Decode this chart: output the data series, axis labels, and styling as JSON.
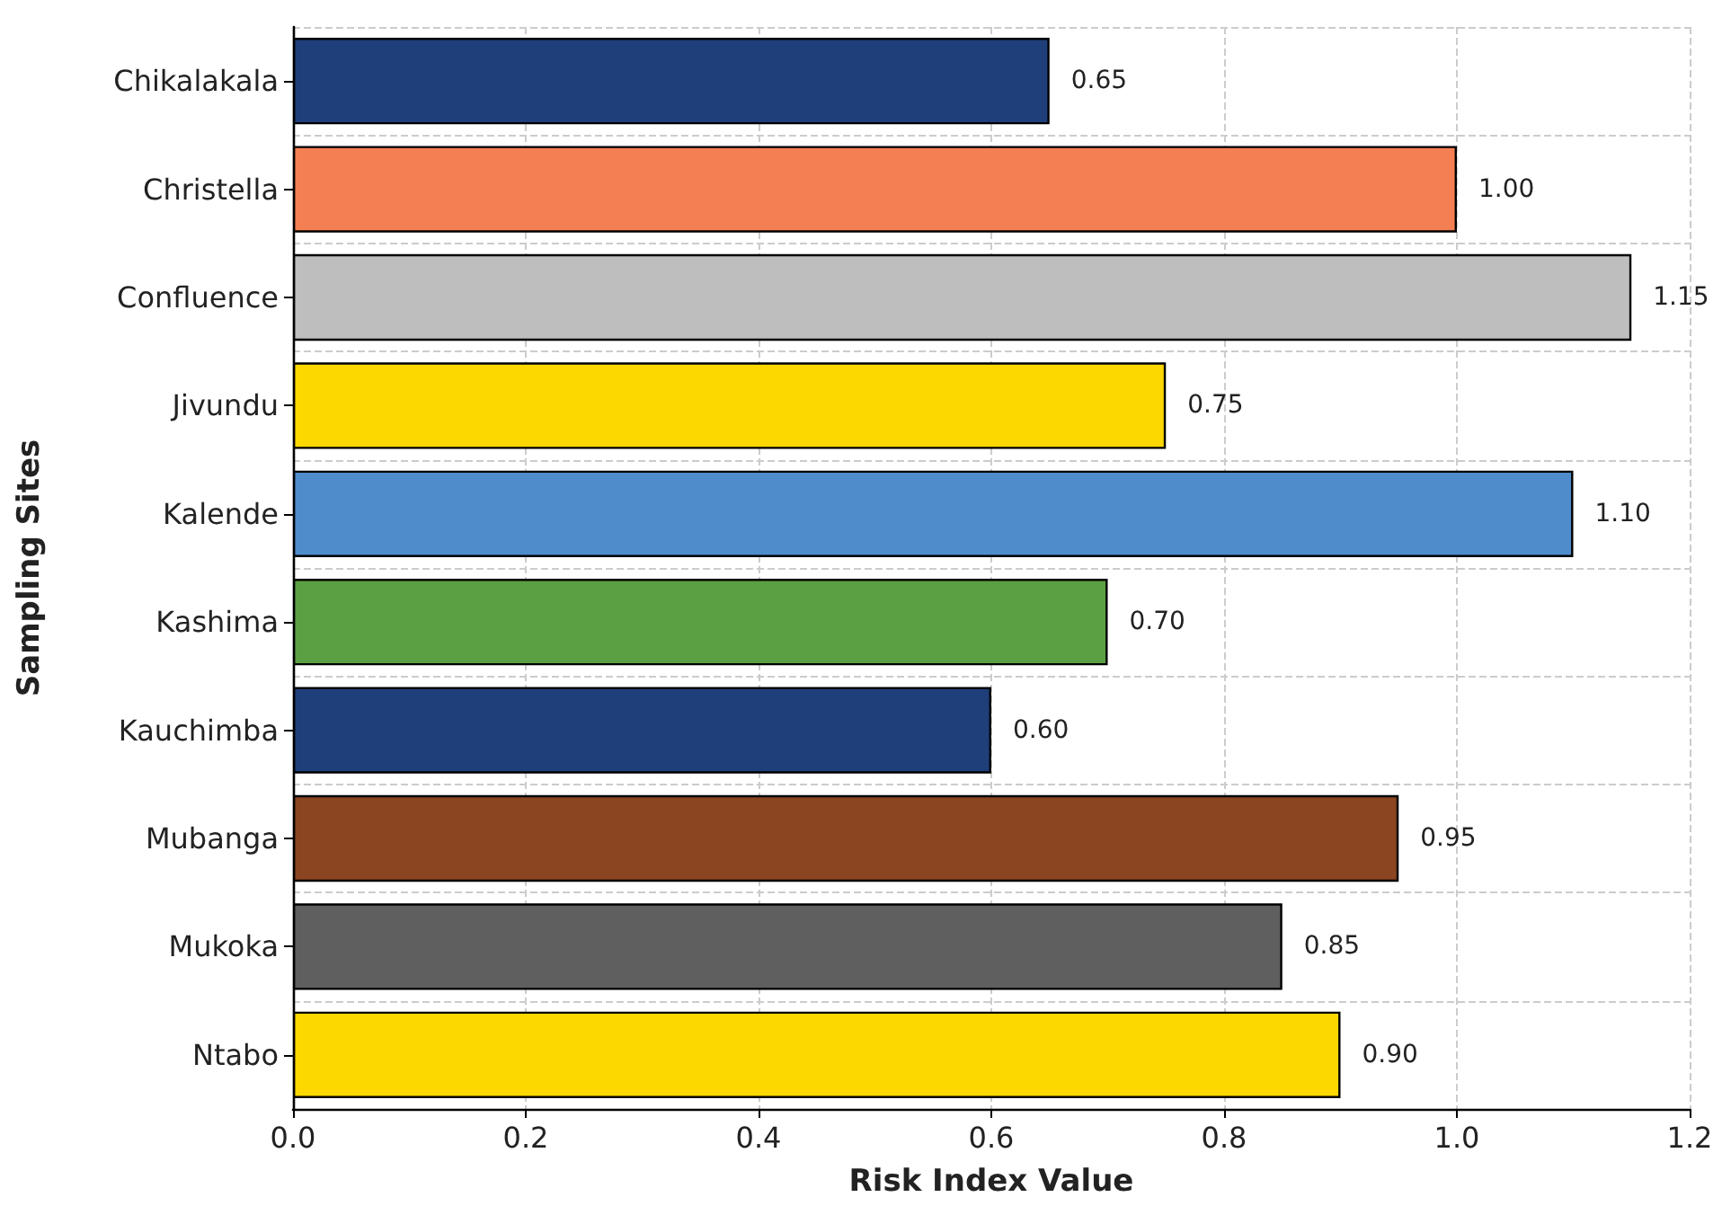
{
  "chart_data": {
    "type": "bar",
    "orientation": "horizontal",
    "xlabel": "Risk Index Value",
    "ylabel": "Sampling Sites",
    "categories": [
      "Chikalakala",
      "Christella",
      "Confluence",
      "Jivundu",
      "Kalende",
      "Kashima",
      "Kauchimba",
      "Mubanga",
      "Mukoka",
      "Ntabo"
    ],
    "values": [
      0.65,
      1.0,
      1.15,
      0.75,
      1.1,
      0.7,
      0.6,
      0.95,
      0.85,
      0.9
    ],
    "colors": [
      "#1f3f7a",
      "#f47f52",
      "#bebebe",
      "#fcd700",
      "#4f8ccb",
      "#5ba043",
      "#1f3f7a",
      "#8b4520",
      "#5f5f5f",
      "#fcd700"
    ],
    "value_labels": [
      "0.65",
      "1.00",
      "1.15",
      "0.75",
      "1.10",
      "0.70",
      "0.60",
      "0.95",
      "0.85",
      "0.90"
    ],
    "xlim": [
      0,
      1.2
    ],
    "xticks": [
      {
        "value": 0,
        "label": "0.0"
      },
      {
        "value": 0.2,
        "label": "0.2"
      },
      {
        "value": 0.4,
        "label": "0.4"
      },
      {
        "value": 0.6,
        "label": "0.6"
      },
      {
        "value": 0.8,
        "label": "0.8"
      },
      {
        "value": 1.0,
        "label": "1.0"
      },
      {
        "value": 1.2,
        "label": "1.2"
      }
    ],
    "grid": true
  }
}
